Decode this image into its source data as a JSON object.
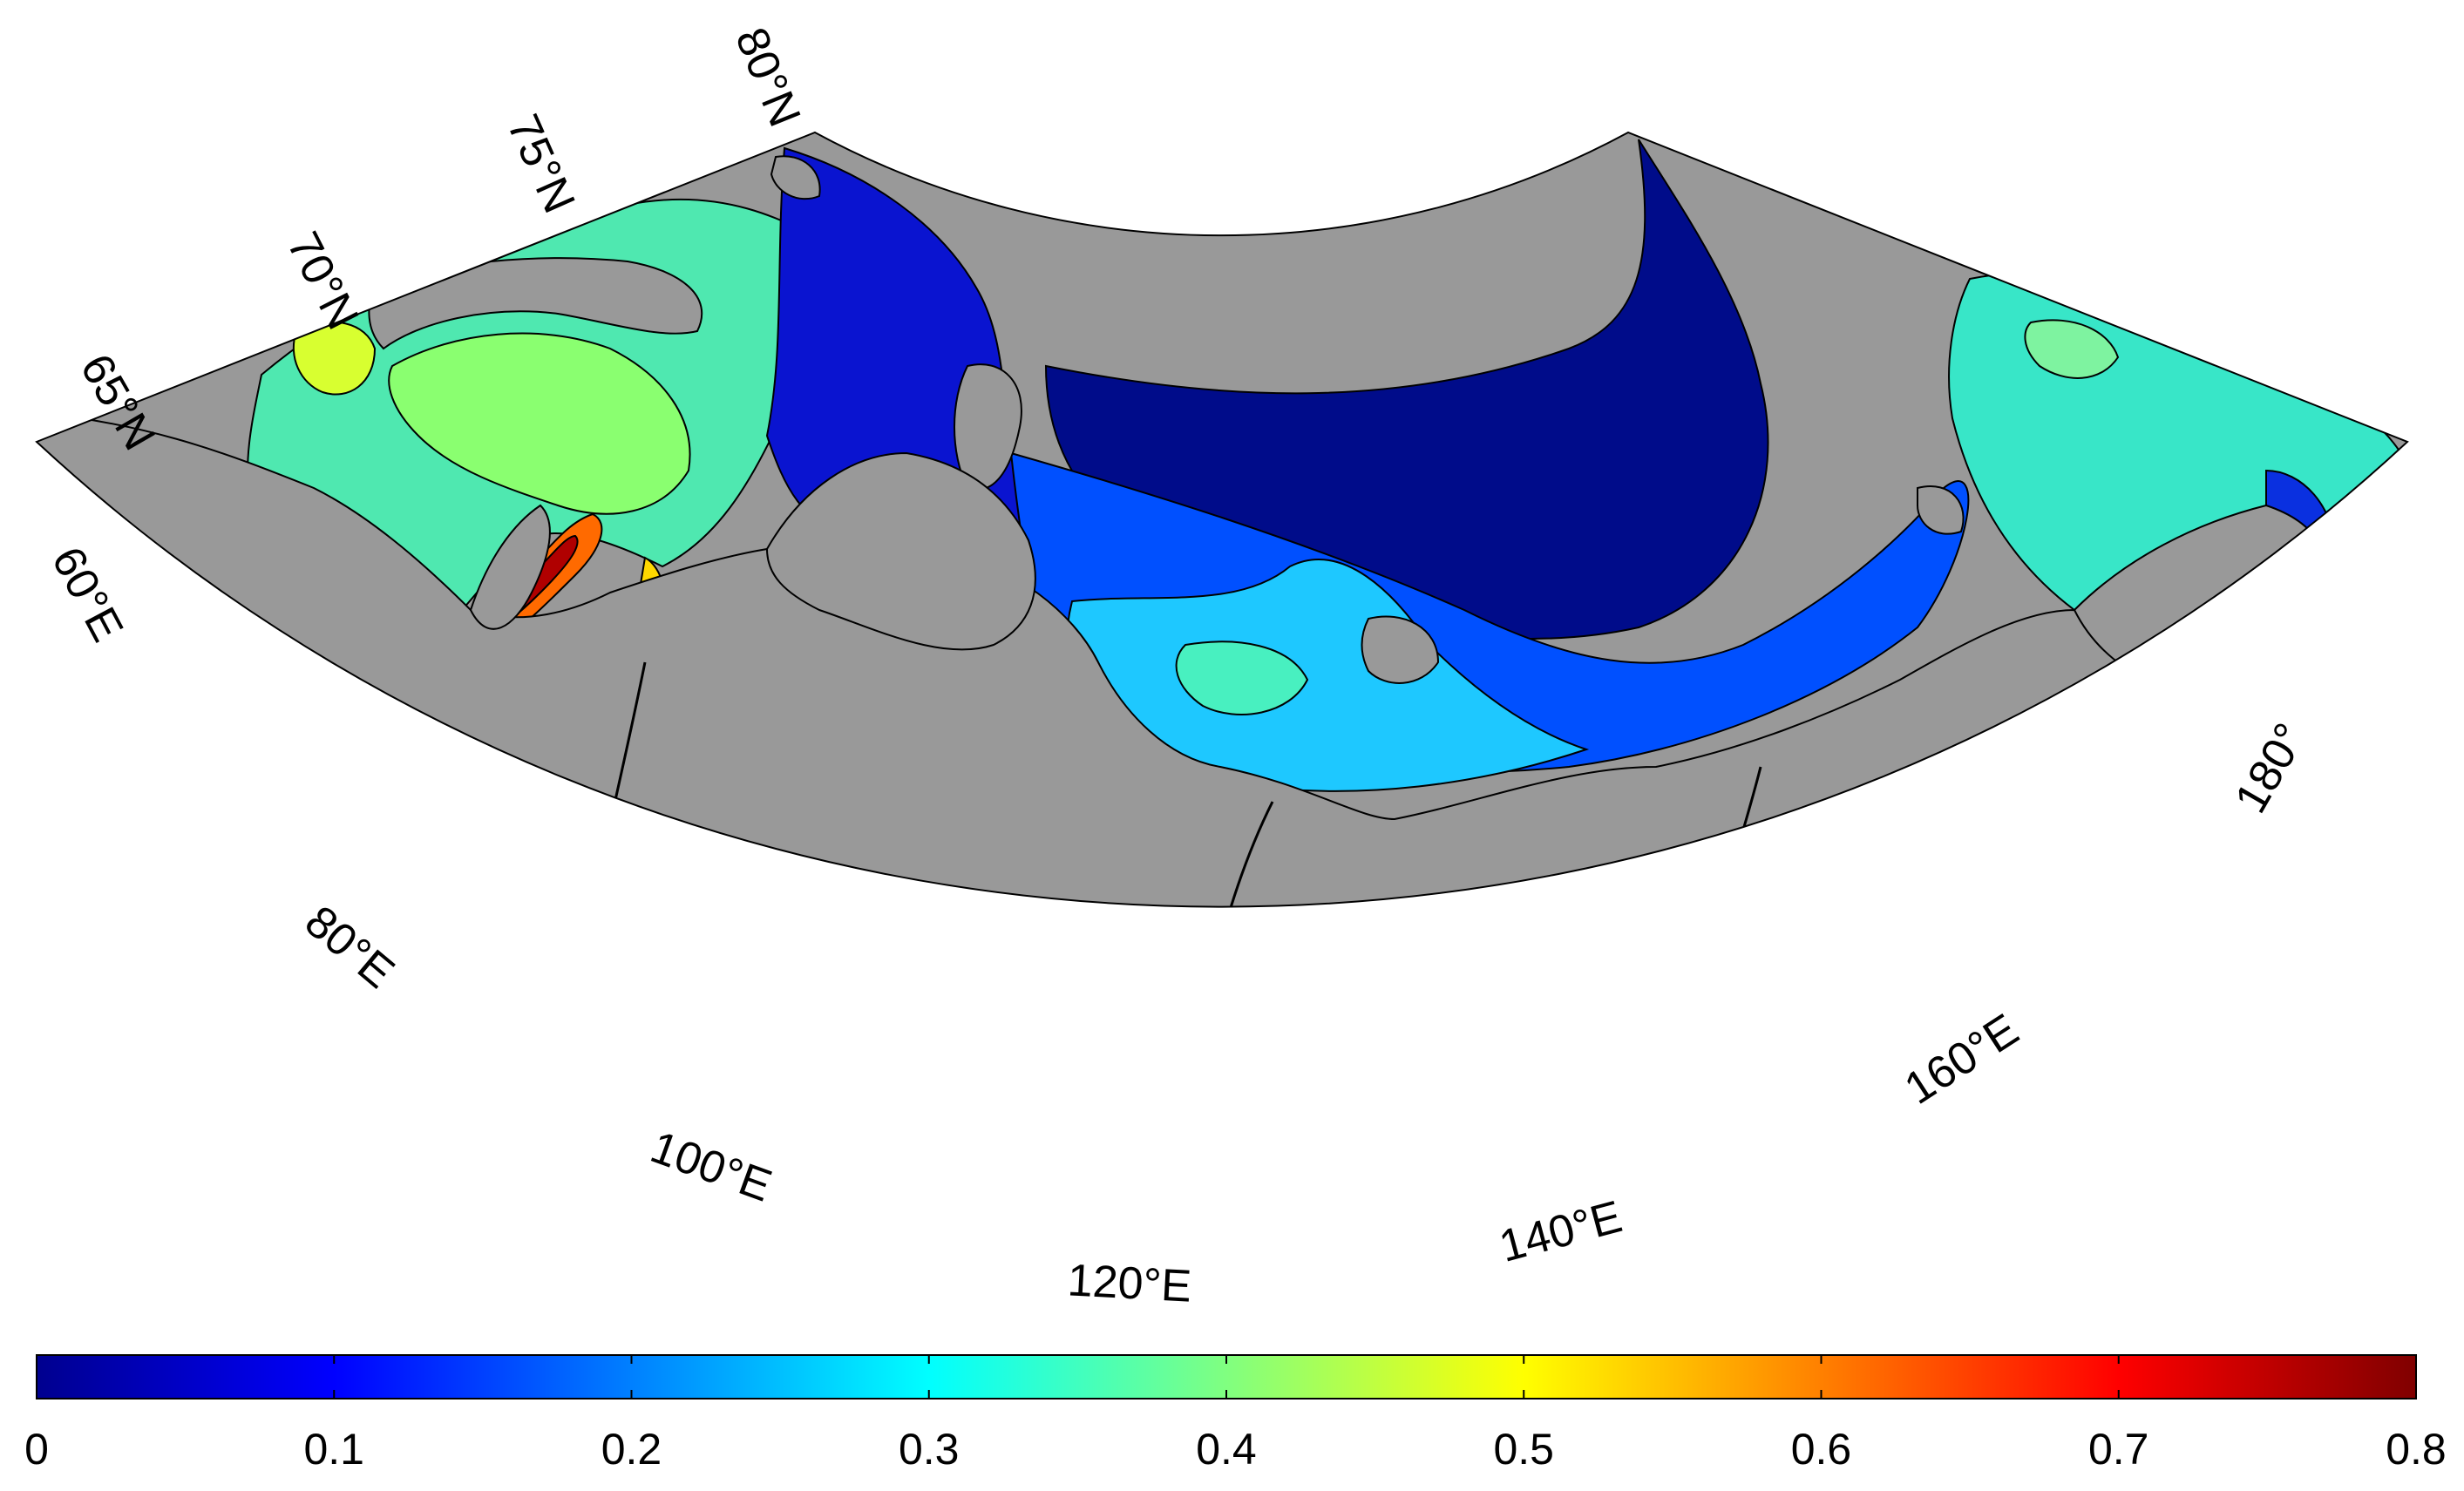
{
  "map": {
    "projection": "conic",
    "land_color": "#999999",
    "coast_color": "#000000",
    "lat_labels": [
      "65°N",
      "70°N",
      "75°N",
      "80°N"
    ],
    "lon_labels_left": [
      "60°E",
      "80°E",
      "100°E",
      "120°E"
    ],
    "lon_labels_right": [
      "140°E",
      "160°E",
      "180°"
    ]
  },
  "colorbar": {
    "colormap": "jet",
    "min": 0,
    "max": 0.8,
    "ticks": [
      "0",
      "0.1",
      "0.2",
      "0.3",
      "0.4",
      "0.5",
      "0.6",
      "0.7",
      "0.8"
    ],
    "colors": [
      "#00008f",
      "#0000ff",
      "#0080ff",
      "#00ffff",
      "#80ff80",
      "#ffff00",
      "#ff8000",
      "#ff0000",
      "#800000"
    ]
  }
}
